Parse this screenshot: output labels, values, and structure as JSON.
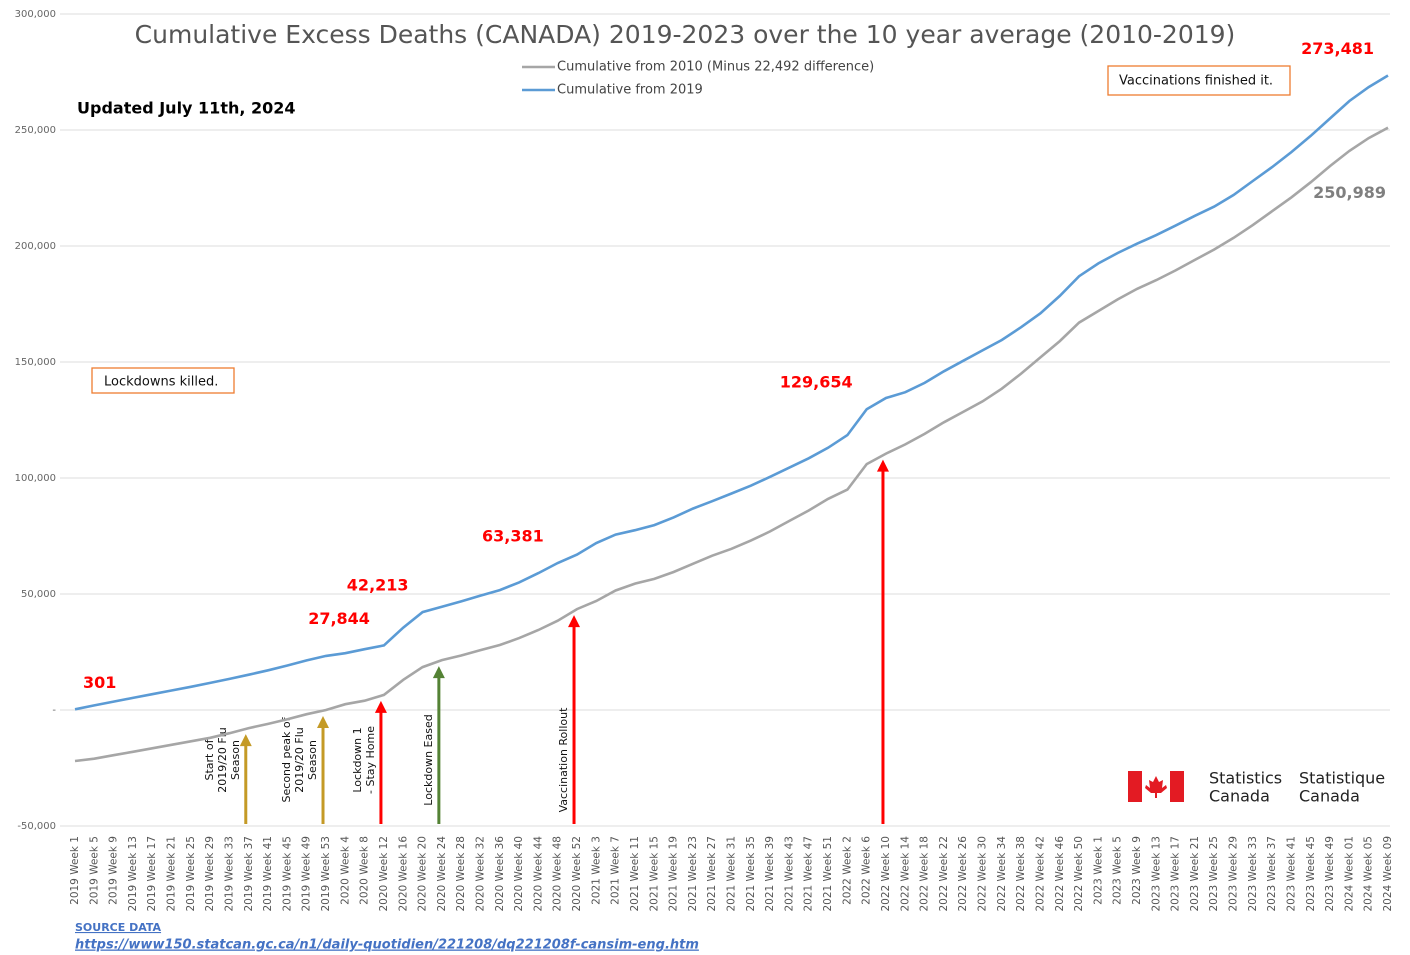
{
  "chart_data": {
    "type": "line",
    "title": "Cumulative Excess Deaths (CANADA) 2019-2023 over the 10 year average (2010-2019)",
    "subtitle": "Updated July 11th, 2024",
    "categories": [
      "2019 Week 1",
      "2019 Week 5",
      "2019 Week 9",
      "2019 Week 13",
      "2019 Week 17",
      "2019 Week 21",
      "2019 Week 25",
      "2019 Week 29",
      "2019 Week 33",
      "2019 Week 37",
      "2019 Week 41",
      "2019 Week 45",
      "2019 Week 49",
      "2019 Week 53",
      "2020 Week 4",
      "2020 Week 8",
      "2020 Week 12",
      "2020 Week 16",
      "2020 Week 20",
      "2020 Week 24",
      "2020 Week 28",
      "2020 Week 32",
      "2020 Week 36",
      "2020 Week 40",
      "2020 Week 44",
      "2020 Week 48",
      "2020 Week 52",
      "2021 Week 3",
      "2021 Week 7",
      "2021 Week 11",
      "2021 Week 15",
      "2021 Week 19",
      "2021 Week 23",
      "2021 Week 27",
      "2021 Week 31",
      "2021 Week 35",
      "2021 Week 39",
      "2021 Week 43",
      "2021 Week 47",
      "2021 Week 51",
      "2022 Week 2",
      "2022 Week 6",
      "2022 Week 10",
      "2022 Week 14",
      "2022 Week 18",
      "2022 Week 22",
      "2022 Week 26",
      "2022 Week 30",
      "2022 Week 34",
      "2022 Week 38",
      "2022 Week 42",
      "2022 Week 46",
      "2022 Week 50",
      "2023 Week 1",
      "2023 Week 5",
      "2023 Week 9",
      "2023 Week 13",
      "2023 Week 17",
      "2023 Week 21",
      "2023 Week 25",
      "2023 Week 29",
      "2023 Week 33",
      "2023 Week 37",
      "2023 Week 41",
      "2023 Week 45",
      "2023 Week 49",
      "2024 Week 01",
      "2024 Week 05",
      "2024 Week 09"
    ],
    "series": [
      {
        "name": "Cumulative from 2010 (Minus 22,492 difference)",
        "color": "#a6a6a6",
        "values": [
          -22000,
          -21000,
          -19500,
          -18000,
          -16500,
          -15000,
          -13500,
          -12000,
          -10000,
          -7800,
          -6000,
          -4000,
          -1800,
          0,
          2500,
          4000,
          6500,
          13000,
          18500,
          21500,
          23500,
          25800,
          28000,
          31000,
          34500,
          38500,
          43500,
          47000,
          51500,
          54500,
          56500,
          59500,
          63000,
          66500,
          69500,
          73000,
          77000,
          81500,
          86000,
          91000,
          95000,
          106000,
          110500,
          114500,
          119000,
          124000,
          128500,
          133000,
          138500,
          145000,
          152000,
          159000,
          167000,
          172000,
          177000,
          181500,
          185300,
          189500,
          194000,
          198500,
          203500,
          209000,
          215000,
          221000,
          227500,
          234500,
          241000,
          246500,
          250989
        ],
        "value_labels": [
          null,
          null,
          null,
          null,
          null,
          null,
          null,
          null,
          null,
          null,
          null,
          null,
          null,
          null,
          null,
          null,
          null,
          null,
          null,
          null,
          null,
          null,
          null,
          null,
          null,
          null,
          null,
          null,
          null,
          null,
          null,
          null,
          null,
          null,
          null,
          null,
          null,
          null,
          null,
          null,
          null,
          null,
          null,
          null,
          null,
          null,
          null,
          null,
          null,
          null,
          null,
          null,
          null,
          null,
          null,
          null,
          null,
          null,
          null,
          null,
          null,
          null,
          null,
          null,
          null,
          null,
          null,
          null,
          "250,989"
        ],
        "label_color": "#7f7f7f"
      },
      {
        "name": "Cumulative from 2019",
        "color": "#5b9bd5",
        "values": [
          301,
          2000,
          3600,
          5200,
          6800,
          8400,
          10000,
          11700,
          13400,
          15200,
          17100,
          19200,
          21400,
          23300,
          24500,
          26200,
          27844,
          35500,
          42213,
          44500,
          46800,
          49300,
          51700,
          55000,
          59000,
          63381,
          67000,
          72000,
          75600,
          77500,
          79700,
          83000,
          86800,
          90000,
          93300,
          96700,
          100500,
          104500,
          108500,
          113000,
          118500,
          129654,
          134500,
          137000,
          141000,
          146000,
          150500,
          155000,
          159500,
          165000,
          171000,
          178500,
          187000,
          192500,
          197000,
          201000,
          204700,
          208800,
          213000,
          217000,
          222000,
          228000,
          234000,
          240500,
          247500,
          255000,
          262500,
          268500,
          273481
        ],
        "value_labels": [
          "301",
          null,
          null,
          null,
          null,
          null,
          null,
          null,
          null,
          null,
          null,
          null,
          null,
          null,
          null,
          null,
          "27,844",
          null,
          "42,213",
          null,
          null,
          null,
          null,
          null,
          null,
          "63,381",
          null,
          null,
          null,
          null,
          null,
          null,
          null,
          null,
          null,
          null,
          null,
          null,
          null,
          null,
          null,
          "129,654",
          null,
          null,
          null,
          null,
          null,
          null,
          null,
          null,
          null,
          null,
          null,
          null,
          null,
          null,
          null,
          null,
          null,
          null,
          null,
          null,
          null,
          null,
          null,
          null,
          null,
          null,
          "273,481"
        ],
        "label_color": "#ff0000"
      }
    ],
    "ylim": [
      -50000,
      300000
    ],
    "yticks": [
      {
        "value": -50000,
        "label": "-50,000"
      },
      {
        "value": 0,
        "label": "-"
      },
      {
        "value": 50000,
        "label": "50,000"
      },
      {
        "value": 100000,
        "label": "100,000"
      },
      {
        "value": 150000,
        "label": "150,000"
      },
      {
        "value": 200000,
        "label": "200,000"
      },
      {
        "value": 250000,
        "label": "250,000"
      },
      {
        "value": 300000,
        "label": "300,000"
      }
    ],
    "grid": true,
    "arrows": [
      {
        "category": "2019 Week 37",
        "color": "#c49a26",
        "text": [
          "Start of",
          "2019/20 Flu",
          "Season"
        ]
      },
      {
        "category": "2019 Week 53",
        "color": "#c49a26",
        "text": [
          "Second peak of",
          "2019/20 Flu",
          "Season"
        ]
      },
      {
        "category": "2020 Week 12",
        "color": "#ff0000",
        "text": [
          "Lockdown 1",
          "- Stay Home"
        ]
      },
      {
        "category": "2020 Week 24",
        "color": "#548235",
        "text": [
          "Lockdown Eased"
        ]
      },
      {
        "category": "2020 Week 52",
        "color": "#ff0000",
        "text": [
          "Vaccination Rollout"
        ]
      },
      {
        "category": "2022 Week 10",
        "color": "#ff0000",
        "text": []
      }
    ],
    "notes": [
      "Lockdowns killed.",
      "Vaccinations finished it."
    ],
    "logo": {
      "en": [
        "Statistics",
        "Canada"
      ],
      "fr": [
        "Statistique",
        "Canada"
      ]
    },
    "source": {
      "heading": "SOURCE DATA",
      "url": "https://www150.statcan.gc.ca/n1/daily-quotidien/221208/dq221208f-cansim-eng.htm"
    }
  }
}
